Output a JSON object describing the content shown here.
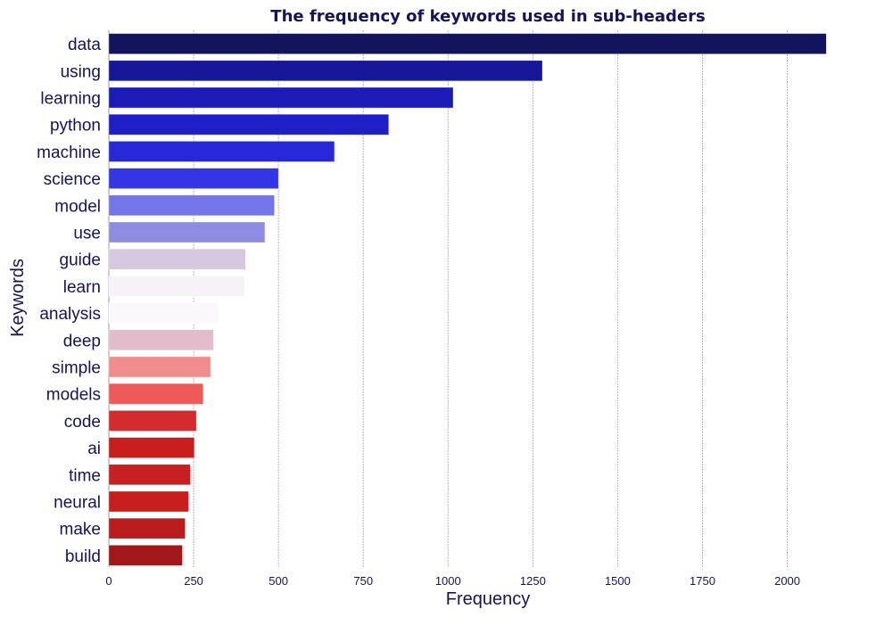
{
  "chart_data": {
    "type": "bar",
    "orientation": "horizontal",
    "title": "The frequency of keywords used in sub-headers",
    "xlabel": "Frequency",
    "ylabel": "Keywords",
    "xlim": [
      0,
      2130
    ],
    "xticks": [
      0,
      250,
      500,
      750,
      1000,
      1250,
      1500,
      1750,
      2000
    ],
    "grid": "vertical",
    "categories": [
      "data",
      "using",
      "learning",
      "python",
      "machine",
      "science",
      "model",
      "use",
      "guide",
      "learn",
      "analysis",
      "deep",
      "simple",
      "models",
      "code",
      "ai",
      "time",
      "neural",
      "make",
      "build"
    ],
    "values": [
      2115,
      1278,
      1015,
      825,
      665,
      500,
      488,
      460,
      403,
      400,
      322,
      308,
      300,
      278,
      258,
      252,
      240,
      235,
      225,
      217
    ],
    "colors": [
      "#14145e",
      "#17179a",
      "#1b1bb8",
      "#1f1fc8",
      "#2828d8",
      "#3535e8",
      "#7575ea",
      "#8c8ce0",
      "#d6c8de",
      "#f6f2f8",
      "#faf8fa",
      "#e2bccb",
      "#f08c8c",
      "#ee5a5a",
      "#d42c2c",
      "#c81e1e",
      "#c82020",
      "#c81e1e",
      "#b81c1c",
      "#a01818"
    ]
  }
}
